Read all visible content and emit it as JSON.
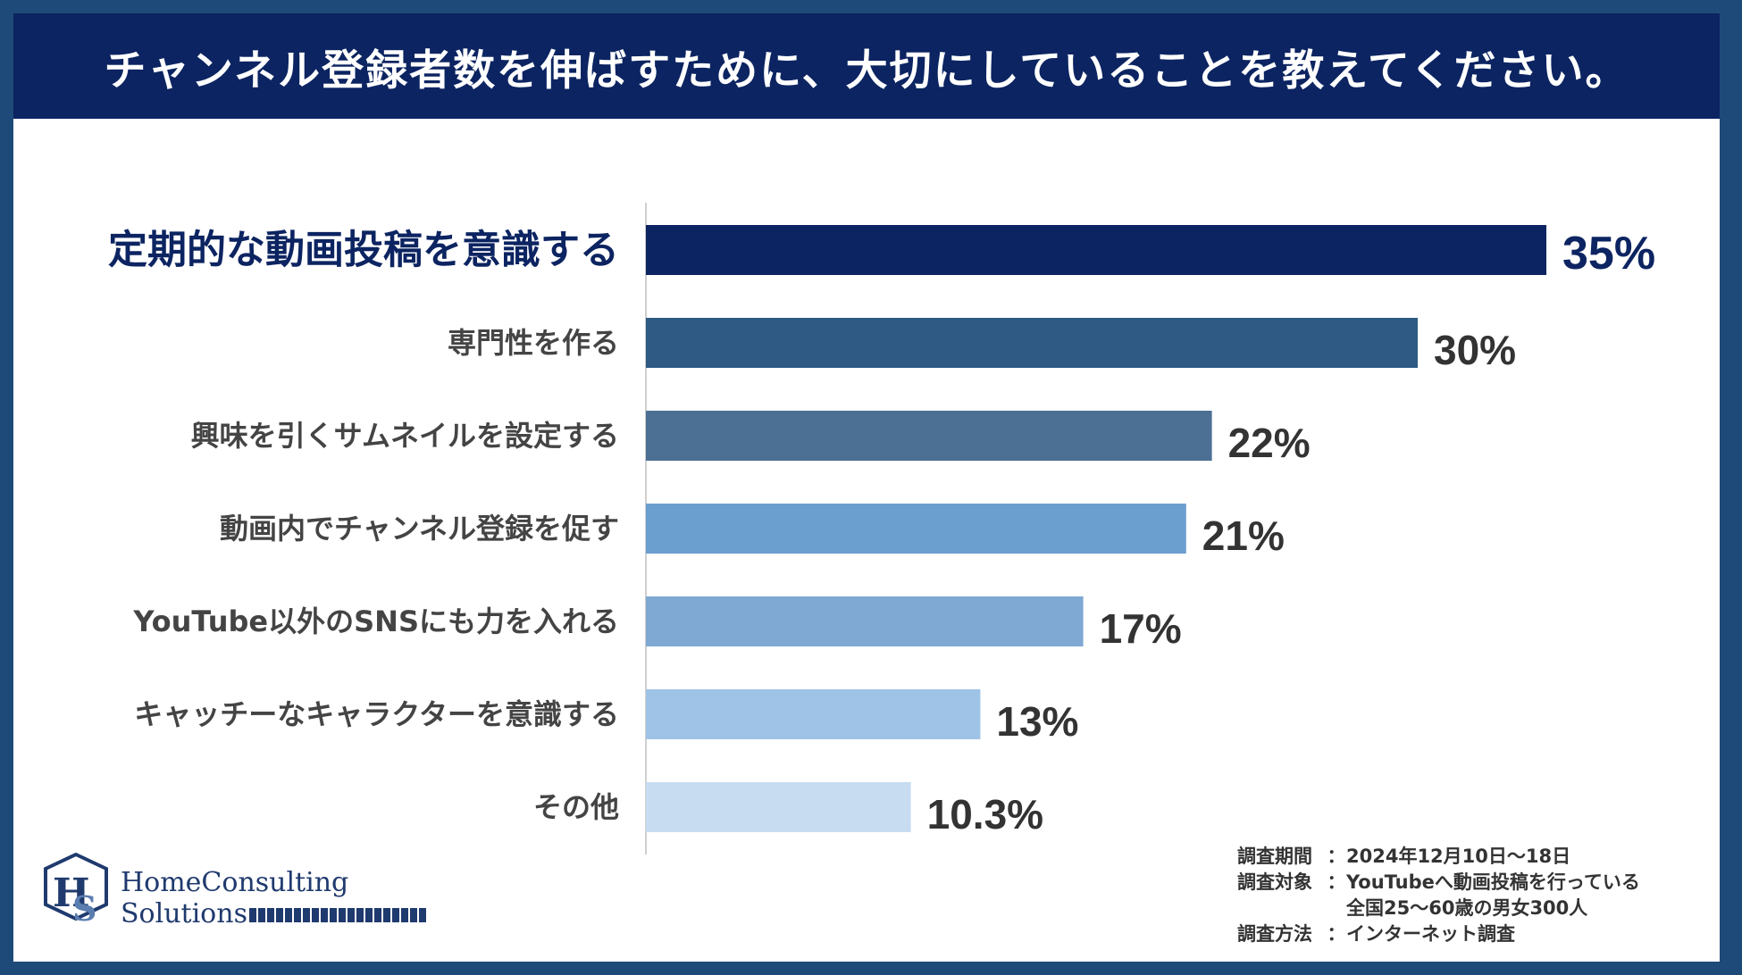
{
  "header": {
    "title": "チャンネル登録者数を伸ばすために、大切にしていることを教えてください。"
  },
  "chart_data": {
    "type": "bar",
    "orientation": "horizontal",
    "categories": [
      "定期的な動画投稿を意識する",
      "専門性を作る",
      "興味を引くサムネイルを設定する",
      "動画内でチャンネル登録を促す",
      "YouTube以外のSNSにも力を入れる",
      "キャッチーなキャラクターを意識する",
      "その他"
    ],
    "values": [
      35,
      30,
      22,
      21,
      17,
      13,
      10.3
    ],
    "value_labels": [
      "35%",
      "30%",
      "22%",
      "21%",
      "17%",
      "13%",
      "10.3%"
    ],
    "bar_colors": [
      "#0c2461",
      "#2e5a84",
      "#4c6f94",
      "#6b9fcf",
      "#7fa9d2",
      "#9fc3e6",
      "#c7dcf0"
    ],
    "highlight_color": "#0c2461",
    "label_color": "#444444",
    "unit": "%",
    "xlim": [
      0,
      35
    ],
    "grid": false,
    "legend": "none"
  },
  "logo": {
    "line1": "HomeConsulting",
    "line2": "Solutions"
  },
  "notes": {
    "period_key": "調査期間",
    "period_val": "2024年12月10日～18日",
    "target_key": "調査対象",
    "target_val1": "YouTubeへ動画投稿を行っている",
    "target_val2": "全国25～60歳の男女300人",
    "method_key": "調査方法",
    "method_val": "インターネット調査",
    "separator": "："
  }
}
